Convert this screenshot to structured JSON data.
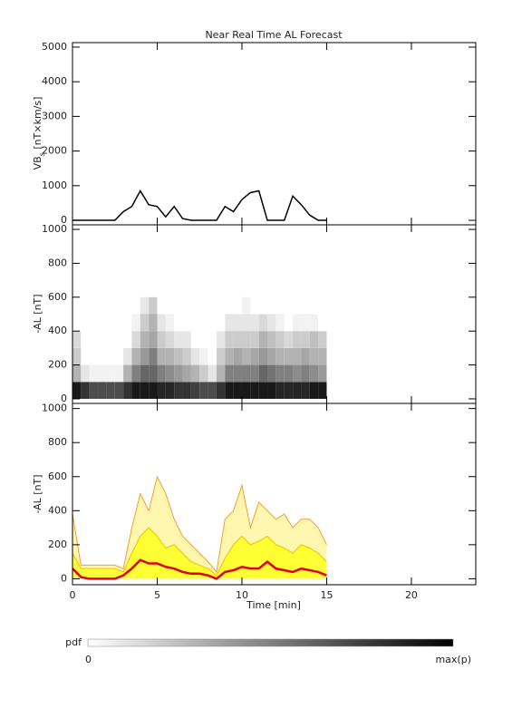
{
  "chart_data": [
    {
      "type": "line",
      "title": "Near Real Time AL Forecast",
      "y_label": [
        "VB",
        "s",
        " [nT×km/s]"
      ],
      "x": [
        0,
        0.5,
        1,
        1.5,
        2,
        2.5,
        3,
        3.5,
        4,
        4.5,
        5,
        5.5,
        6,
        6.5,
        7,
        7.5,
        8,
        8.5,
        9,
        9.5,
        10,
        10.5,
        11,
        11.5,
        12,
        12.5,
        13,
        13.5,
        14,
        14.5,
        15
      ],
      "series": [
        {
          "color": "#000000",
          "values": [
            0,
            0,
            0,
            0,
            0,
            0,
            250,
            400,
            850,
            450,
            400,
            100,
            400,
            50,
            0,
            0,
            0,
            0,
            400,
            250,
            600,
            800,
            850,
            0,
            0,
            0,
            700,
            450,
            150,
            0,
            0
          ]
        }
      ],
      "xlim": [
        0,
        23.8
      ],
      "ylim": [
        -130,
        5130
      ],
      "yticks": [
        0,
        1000,
        2000,
        3000,
        4000,
        5000
      ]
    },
    {
      "type": "heatmap",
      "y_label": "-AL [nT]",
      "x_edges": [
        0,
        0.5,
        1,
        1.5,
        2,
        2.5,
        3,
        3.5,
        4,
        4.5,
        5,
        5.5,
        6,
        6.5,
        7,
        7.5,
        8,
        8.5,
        9,
        9.5,
        10,
        10.5,
        11,
        11.5,
        12,
        12.5,
        13,
        13.5,
        14,
        14.5,
        15
      ],
      "y_edges": [
        0,
        100,
        200,
        300,
        400,
        500,
        600
      ],
      "values": [
        [
          0.9,
          0.3,
          0.2,
          0.15,
          0,
          0
        ],
        [
          0.8,
          0.1,
          0,
          0,
          0,
          0
        ],
        [
          0.7,
          0.05,
          0,
          0,
          0,
          0
        ],
        [
          0.7,
          0.05,
          0,
          0,
          0,
          0
        ],
        [
          0.7,
          0.05,
          0,
          0,
          0,
          0
        ],
        [
          0.7,
          0.05,
          0,
          0,
          0,
          0
        ],
        [
          0.8,
          0.3,
          0.1,
          0,
          0,
          0
        ],
        [
          0.9,
          0.5,
          0.3,
          0.15,
          0.05,
          0
        ],
        [
          0.9,
          0.6,
          0.4,
          0.3,
          0.2,
          0.1
        ],
        [
          0.9,
          0.6,
          0.5,
          0.35,
          0.3,
          0.2
        ],
        [
          0.85,
          0.5,
          0.3,
          0.2,
          0.1,
          0
        ],
        [
          0.85,
          0.45,
          0.3,
          0.15,
          0.05,
          0
        ],
        [
          0.8,
          0.4,
          0.25,
          0.1,
          0,
          0
        ],
        [
          0.8,
          0.35,
          0.2,
          0.1,
          0,
          0
        ],
        [
          0.75,
          0.3,
          0.1,
          0,
          0,
          0
        ],
        [
          0.7,
          0.2,
          0.05,
          0,
          0,
          0
        ],
        [
          0.7,
          0.1,
          0,
          0,
          0,
          0
        ],
        [
          0.8,
          0.3,
          0.2,
          0.1,
          0,
          0
        ],
        [
          0.9,
          0.5,
          0.3,
          0.2,
          0.1,
          0
        ],
        [
          0.9,
          0.5,
          0.35,
          0.2,
          0.1,
          0
        ],
        [
          0.9,
          0.5,
          0.3,
          0.2,
          0.1,
          0.05
        ],
        [
          0.9,
          0.5,
          0.35,
          0.2,
          0.1,
          0
        ],
        [
          0.9,
          0.6,
          0.4,
          0.3,
          0.15,
          0
        ],
        [
          0.9,
          0.55,
          0.35,
          0.25,
          0.1,
          0
        ],
        [
          0.85,
          0.5,
          0.3,
          0.2,
          0.05,
          0
        ],
        [
          0.85,
          0.5,
          0.3,
          0.15,
          0,
          0
        ],
        [
          0.85,
          0.45,
          0.3,
          0.2,
          0.05,
          0
        ],
        [
          0.85,
          0.5,
          0.35,
          0.2,
          0.05,
          0
        ],
        [
          0.9,
          0.45,
          0.3,
          0.25,
          0.05,
          0
        ],
        [
          0.9,
          0.4,
          0.3,
          0.2,
          0,
          0
        ]
      ],
      "xlim": [
        0,
        23.8
      ],
      "ylim": [
        -27,
        1027
      ],
      "yticks": [
        0,
        200,
        400,
        600,
        800,
        1000
      ],
      "colorbar": {
        "label": "pdf",
        "min_label": "0",
        "max_label": "max(p)"
      }
    },
    {
      "type": "area",
      "y_label": "-AL [nT]",
      "x_label": "Time [min]",
      "x": [
        0,
        0.5,
        1,
        1.5,
        2,
        2.5,
        3,
        3.5,
        4,
        4.5,
        5,
        5.5,
        6,
        6.5,
        7,
        7.5,
        8,
        8.5,
        9,
        9.5,
        10,
        10.5,
        11,
        11.5,
        12,
        12.5,
        13,
        13.5,
        14,
        14.5,
        15
      ],
      "series": [
        {
          "color": "#f0a030",
          "fill": "#fff6b0",
          "values": [
            380,
            80,
            80,
            80,
            80,
            80,
            60,
            300,
            500,
            400,
            600,
            500,
            350,
            250,
            200,
            150,
            100,
            40,
            350,
            400,
            550,
            300,
            450,
            400,
            350,
            380,
            300,
            350,
            350,
            300,
            200
          ]
        },
        {
          "color": "#f0c000",
          "fill": "#ffff33",
          "values": [
            150,
            60,
            60,
            60,
            60,
            60,
            40,
            150,
            250,
            300,
            250,
            180,
            200,
            150,
            100,
            80,
            60,
            20,
            120,
            200,
            250,
            200,
            220,
            250,
            200,
            180,
            150,
            200,
            180,
            150,
            100
          ]
        },
        {
          "color": "#e00000",
          "values": [
            60,
            10,
            0,
            0,
            0,
            0,
            20,
            60,
            110,
            90,
            90,
            70,
            60,
            40,
            30,
            30,
            20,
            0,
            40,
            50,
            70,
            60,
            60,
            100,
            60,
            50,
            40,
            60,
            50,
            40,
            20
          ]
        }
      ],
      "xlim": [
        0,
        23.8
      ],
      "ylim": [
        -35,
        1030
      ],
      "yticks": [
        0,
        200,
        400,
        600,
        800,
        1000
      ],
      "xticks": [
        0,
        5,
        10,
        15,
        20
      ]
    }
  ]
}
